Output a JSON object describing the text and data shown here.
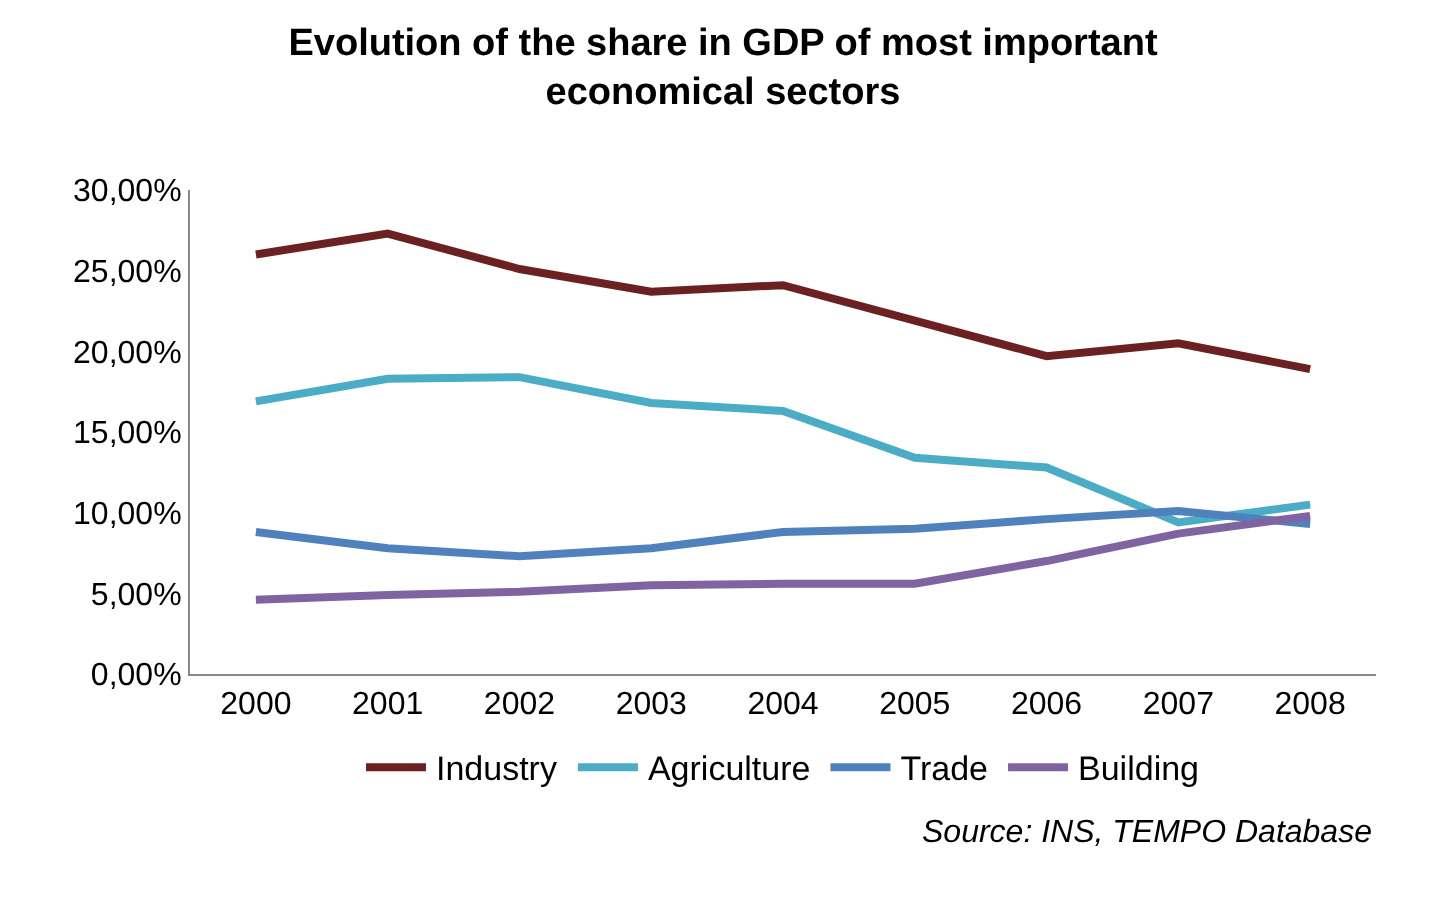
{
  "chart_data": {
    "type": "line",
    "title": "Evolution of the share in GDP of most important economical sectors",
    "categories": [
      "2000",
      "2001",
      "2002",
      "2003",
      "2004",
      "2005",
      "2006",
      "2007",
      "2008"
    ],
    "series": [
      {
        "name": "Industry",
        "color": "#6b2121",
        "values": [
          26.0,
          27.3,
          25.1,
          23.7,
          24.1,
          21.9,
          19.7,
          20.5,
          18.9
        ]
      },
      {
        "name": "Agriculture",
        "color": "#4bacc6",
        "values": [
          16.9,
          18.3,
          18.4,
          16.8,
          16.3,
          13.4,
          12.8,
          9.4,
          10.5
        ]
      },
      {
        "name": "Trade",
        "color": "#4f81bd",
        "values": [
          8.8,
          7.8,
          7.3,
          7.8,
          8.8,
          9.0,
          9.6,
          10.1,
          9.3
        ]
      },
      {
        "name": "Building",
        "color": "#8064a2",
        "values": [
          4.6,
          4.9,
          5.1,
          5.5,
          5.6,
          5.6,
          7.0,
          8.7,
          9.8
        ]
      }
    ],
    "ylim": [
      0,
      30
    ],
    "yticks": [
      {
        "value": 0,
        "label": "0,00%"
      },
      {
        "value": 5,
        "label": "5,00%"
      },
      {
        "value": 10,
        "label": "10,00%"
      },
      {
        "value": 15,
        "label": "15,00%"
      },
      {
        "value": 20,
        "label": "20,00%"
      },
      {
        "value": 25,
        "label": "25,00%"
      },
      {
        "value": 30,
        "label": "30,00%"
      }
    ],
    "legend": "bottom",
    "marker": "none",
    "line_style": "solid",
    "annotations": [
      "Source: INS, TEMPO Database"
    ]
  }
}
